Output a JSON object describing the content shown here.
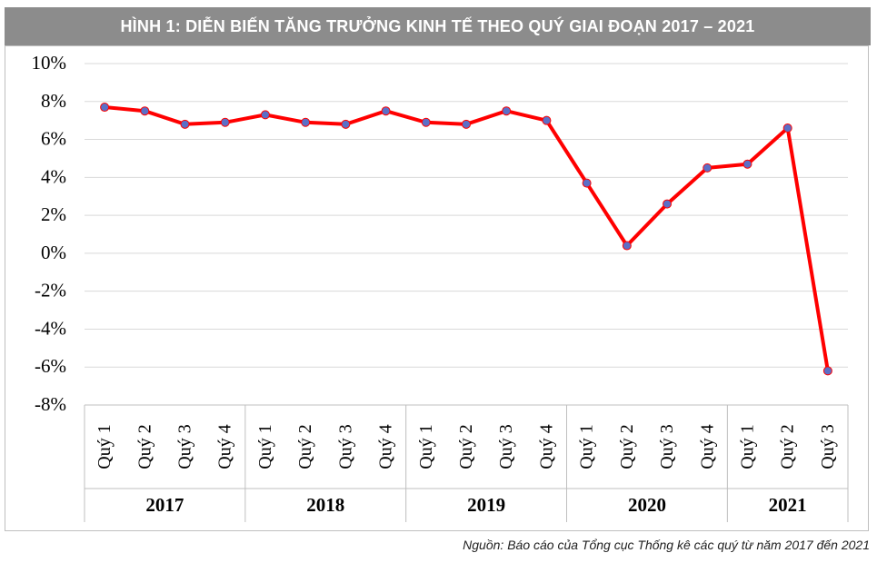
{
  "header": {
    "title": "HÌNH 1: DIỄN BIẾN TĂNG TRƯỞNG KINH TẾ THEO QUÝ GIAI ĐOẠN 2017 – 2021"
  },
  "source_note": "Nguồn: Báo cáo của Tổng cục Thống kê các quý từ năm 2017 đến 2021",
  "chart_data": {
    "type": "line",
    "title": "HÌNH 1: DIỄN BIẾN TĂNG TRƯỞNG KINH TẾ THEO QUÝ GIAI ĐOẠN 2017 – 2021",
    "xlabel": "",
    "ylabel": "",
    "ylim": [
      -8,
      10
    ],
    "yticks": [
      10,
      8,
      6,
      4,
      2,
      0,
      -2,
      -4,
      -6,
      -8
    ],
    "ytick_labels": [
      "10%",
      "8%",
      "6%",
      "4%",
      "2%",
      "0%",
      "-2%",
      "-4%",
      "-6%",
      "-8%"
    ],
    "grid": true,
    "legend": "none",
    "categories": [
      "Quý 1",
      "Quý 2",
      "Quý 3",
      "Quý 4",
      "Quý 1",
      "Quý 2",
      "Quý 3",
      "Quý 4",
      "Quý 1",
      "Quý 2",
      "Quý 3",
      "Quý 4",
      "Quý 1",
      "Quý 2",
      "Quý 3",
      "Quý 4",
      "Quý 1",
      "Quý 2",
      "Quý 3"
    ],
    "groups": [
      {
        "label": "2017",
        "count": 4
      },
      {
        "label": "2018",
        "count": 4
      },
      {
        "label": "2019",
        "count": 4
      },
      {
        "label": "2020",
        "count": 4
      },
      {
        "label": "2021",
        "count": 3
      }
    ],
    "series": [
      {
        "values": [
          7.7,
          7.5,
          6.8,
          6.9,
          7.3,
          6.9,
          6.8,
          7.5,
          6.9,
          6.8,
          7.5,
          7.0,
          3.7,
          0.4,
          2.6,
          4.5,
          4.7,
          6.6,
          -6.2
        ]
      }
    ],
    "colors": {
      "line": "#ff0000",
      "marker": "#5b6fc7",
      "grid": "#d9d9d9",
      "axis": "#bfbfbf"
    }
  }
}
